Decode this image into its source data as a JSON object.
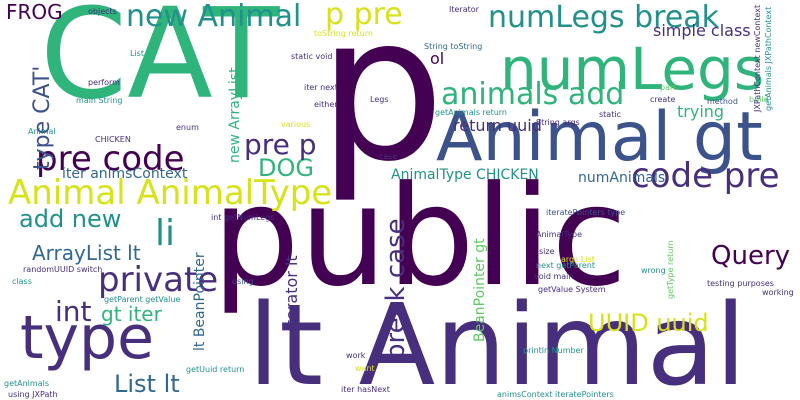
{
  "palette": {
    "dark_purple": "#440154",
    "indigo": "#472f7d",
    "blue": "#3b528b",
    "slate_blue": "#31688e",
    "teal": "#21918c",
    "green": "#2fb47c",
    "light_green": "#5ec962",
    "lime": "#addc30",
    "yellow": "#d8e219"
  },
  "words": {
    "public": "public",
    "cat": "CAT",
    "p": "p",
    "lt_animal": "lt Animal",
    "animal_gt": "Animal gt",
    "type": "type",
    "numlegs": "numLegs",
    "animal_animaltype": "Animal AnimalType",
    "pre_code": "pre code",
    "animals_add": "animals add",
    "new_animal": "new Animal",
    "p_pre": "p pre",
    "numlegs_break": "numLegs break",
    "private": "private",
    "li": "li",
    "code_pre": "code pre",
    "break_case": "break case",
    "query": "Query",
    "list_lt": "List lt",
    "add_new": "add new",
    "uuid_uuid": "UUID uuid",
    "dog": "DOG",
    "pre_p": "pre p",
    "int": "int",
    "arraylist_lt": "ArrayList lt",
    "type_cat": "type CAT'",
    "frog": "FROG",
    "gt_iter": "gt iter",
    "simple_class": "simple class",
    "return_uuid": "return uuid",
    "trying": "trying",
    "ol": "ol",
    "iter_animscontext": "iter animsContext",
    "animaltype_chicken": "AnimalType CHICKEN",
    "numanimals": "numAnimals",
    "new_arraylist": "new ArrayList",
    "iterator_lt": "Iterator lt",
    "lt_beanpointer": "lt BeanPointer",
    "beanpointer_gt": "BeanPointer gt",
    "objects": "objects",
    "iterator": "Iterator",
    "tostring_return": "toString return",
    "string_tostring": "String toString",
    "static_void": "static void",
    "iter_next": "iter next",
    "legs": "Legs",
    "either": "either",
    "part": "part",
    "create": "create",
    "method": "method",
    "build": "build",
    "getanimals_return": "getAnimals return",
    "string_args": "String args",
    "static": "static",
    "animal_small": "Animal",
    "chicken": "CHICKEN",
    "enum": "enum",
    "various": "various",
    "case": "case",
    "list": "List",
    "perform": "perform",
    "main_string": "main String",
    "jxpathcontext_newcontext": "JXPathContext newContext",
    "getanimals_jxpathcontext": "getAnimals JXPathContext",
    "getanimals": "getAnimals",
    "using_jxpath": "using JXPath",
    "randomuuid_switch": "randomUUID switch",
    "class": "class",
    "getparent_getvalue": "getParent getValue",
    "getuuid_return": "getUuid return",
    "using": "using",
    "int_getnumlegs": "int getNumLegs",
    "iteratepointers_type": "iteratePointers type",
    "animaltype": "AnimalType",
    "size": "size",
    "args_list": "args List",
    "next_getparent": "next getParent",
    "gettype_return": "getType return",
    "wrong": "wrong",
    "testing_purposes": "testing purposes",
    "working": "working",
    "getvalue_system": "getValue System",
    "void_main": "void main",
    "println_number": "println Number",
    "work": "work",
    "want": "want",
    "iter_hasnext": "iter hasNext",
    "animscontext_iteratepointers": "animsContext iteratePointers"
  }
}
